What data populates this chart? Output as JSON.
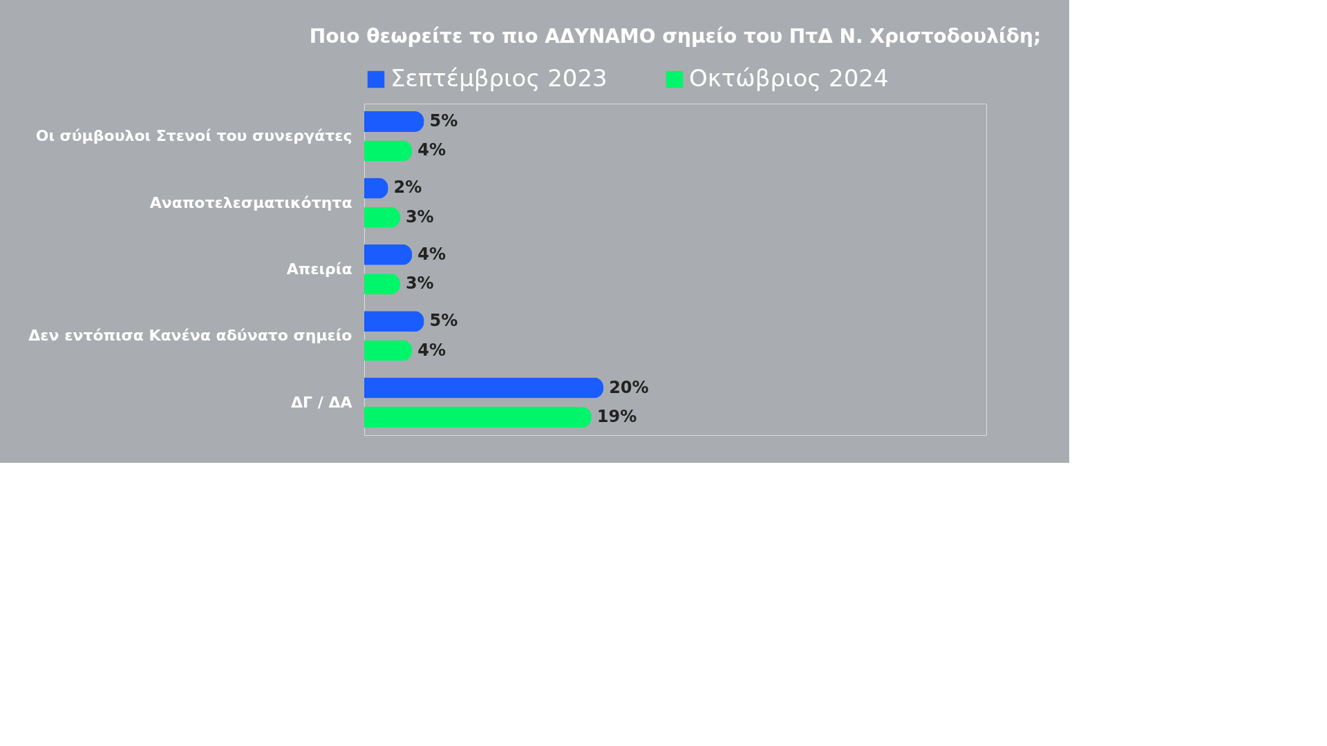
{
  "chart_data": {
    "type": "bar",
    "orientation": "horizontal",
    "title": "Ποιο θεωρείτε το πιο ΑΔΥΝΑΜΟ σημείο του ΠτΔ Ν. Χριστοδουλίδη;",
    "categories": [
      "Οι σύμβουλοι Στενοί του συνεργάτες",
      "Αναποτελεσματικότητα",
      "Απειρία",
      "Δεν εντόπισα Κανένα αδύνατο σημείο",
      "ΔΓ / ΔΑ"
    ],
    "series": [
      {
        "name": "Σεπτέμβριος 2023",
        "color": "#1a5cff",
        "values": [
          5,
          2,
          4,
          5,
          20
        ],
        "value_labels": [
          "5%",
          "2%",
          "4%",
          "5%",
          "20%"
        ]
      },
      {
        "name": "Οκτώβριος 2024",
        "color": "#00f56a",
        "values": [
          4,
          3,
          3,
          4,
          19
        ],
        "value_labels": [
          "4%",
          "3%",
          "3%",
          "4%",
          "19%"
        ]
      }
    ],
    "legend": "top",
    "grid": false
  }
}
